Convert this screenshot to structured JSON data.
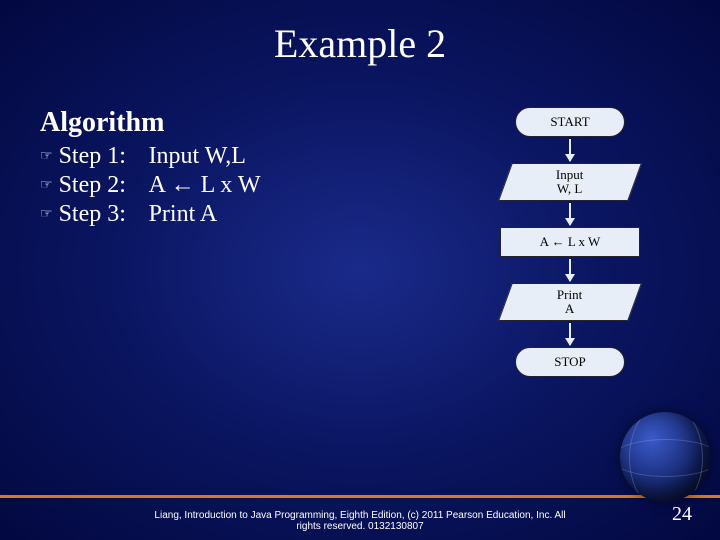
{
  "title": "Example 2",
  "algorithm": {
    "heading": "Algorithm",
    "steps": [
      {
        "label": "Step 1:",
        "text": "Input W,L"
      },
      {
        "label": "Step 2:",
        "text": "A ← L  x  W"
      },
      {
        "label": "Step 3:",
        "text": "Print A"
      }
    ],
    "bullet_glyph": "☞"
  },
  "flowchart": {
    "type": "flowchart",
    "background_color": "#e8eef7",
    "border_color": "#223344",
    "text_color": "#000000",
    "arrow_color": "#e8eef7",
    "font_family": "Times New Roman",
    "node_fontsize": 13,
    "nodes": [
      {
        "id": "start",
        "shape": "terminal",
        "lines": [
          "START"
        ]
      },
      {
        "id": "input",
        "shape": "parallelogram",
        "lines": [
          "Input",
          "W, L"
        ]
      },
      {
        "id": "process",
        "shape": "rect",
        "lines": [
          "A ← L x W"
        ]
      },
      {
        "id": "output",
        "shape": "parallelogram",
        "lines": [
          "Print",
          "A"
        ]
      },
      {
        "id": "stop",
        "shape": "terminal",
        "lines": [
          "STOP"
        ]
      }
    ]
  },
  "footer": {
    "line1": "Liang, Introduction to Java Programming, Eighth Edition, (c) 2011 Pearson Education, Inc. All",
    "line2": "rights reserved. 0132130807"
  },
  "page_number": "24",
  "theme": {
    "bg_gradient_inner": "#1a2a8a",
    "bg_gradient_mid": "#0a1560",
    "bg_gradient_outer": "#020840",
    "title_color": "#ffffff",
    "accent_line_color": "#d97a1a",
    "title_fontsize": 40,
    "heading_fontsize": 28,
    "body_fontsize": 24
  }
}
